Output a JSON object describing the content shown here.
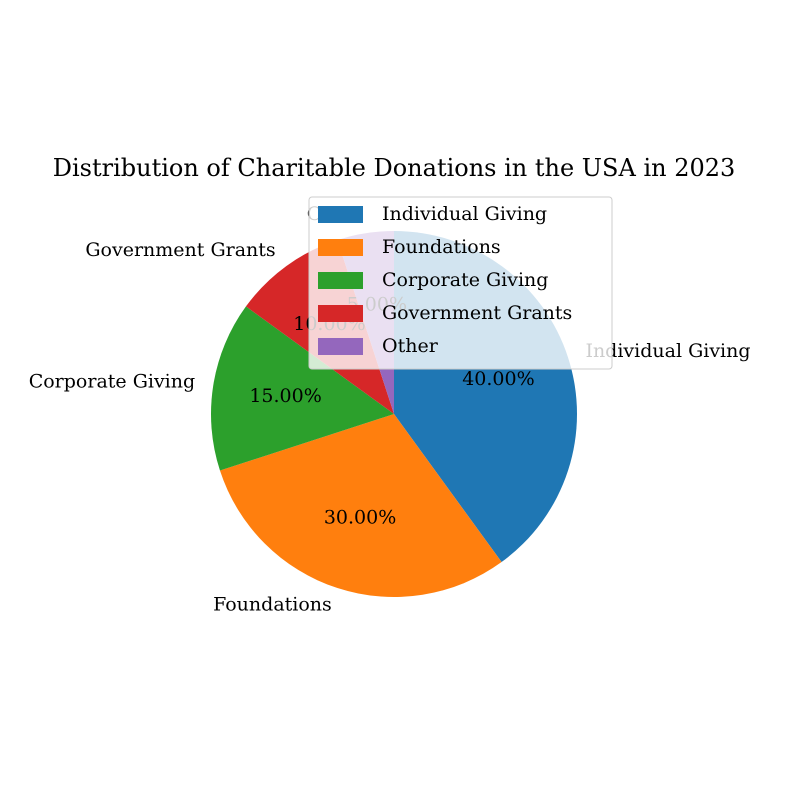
{
  "chart_data": {
    "type": "pie",
    "title": "Distribution of Charitable Donations in the USA in 2023",
    "categories": [
      "Individual Giving",
      "Foundations",
      "Corporate Giving",
      "Government Grants",
      "Other"
    ],
    "values": [
      40,
      30,
      15,
      10,
      5
    ],
    "percent_labels": [
      "40.00%",
      "30.00%",
      "15.00%",
      "10.00%",
      "5.00%"
    ],
    "colors": [
      "#1f77b4",
      "#ff7f0e",
      "#2ca02c",
      "#d62728",
      "#9467bd"
    ],
    "start_angle_deg": 90,
    "direction": "clockwise",
    "legend": {
      "placement": "upper-right",
      "entries": [
        "Individual Giving",
        "Foundations",
        "Corporate Giving",
        "Government Grants",
        "Other"
      ]
    }
  }
}
